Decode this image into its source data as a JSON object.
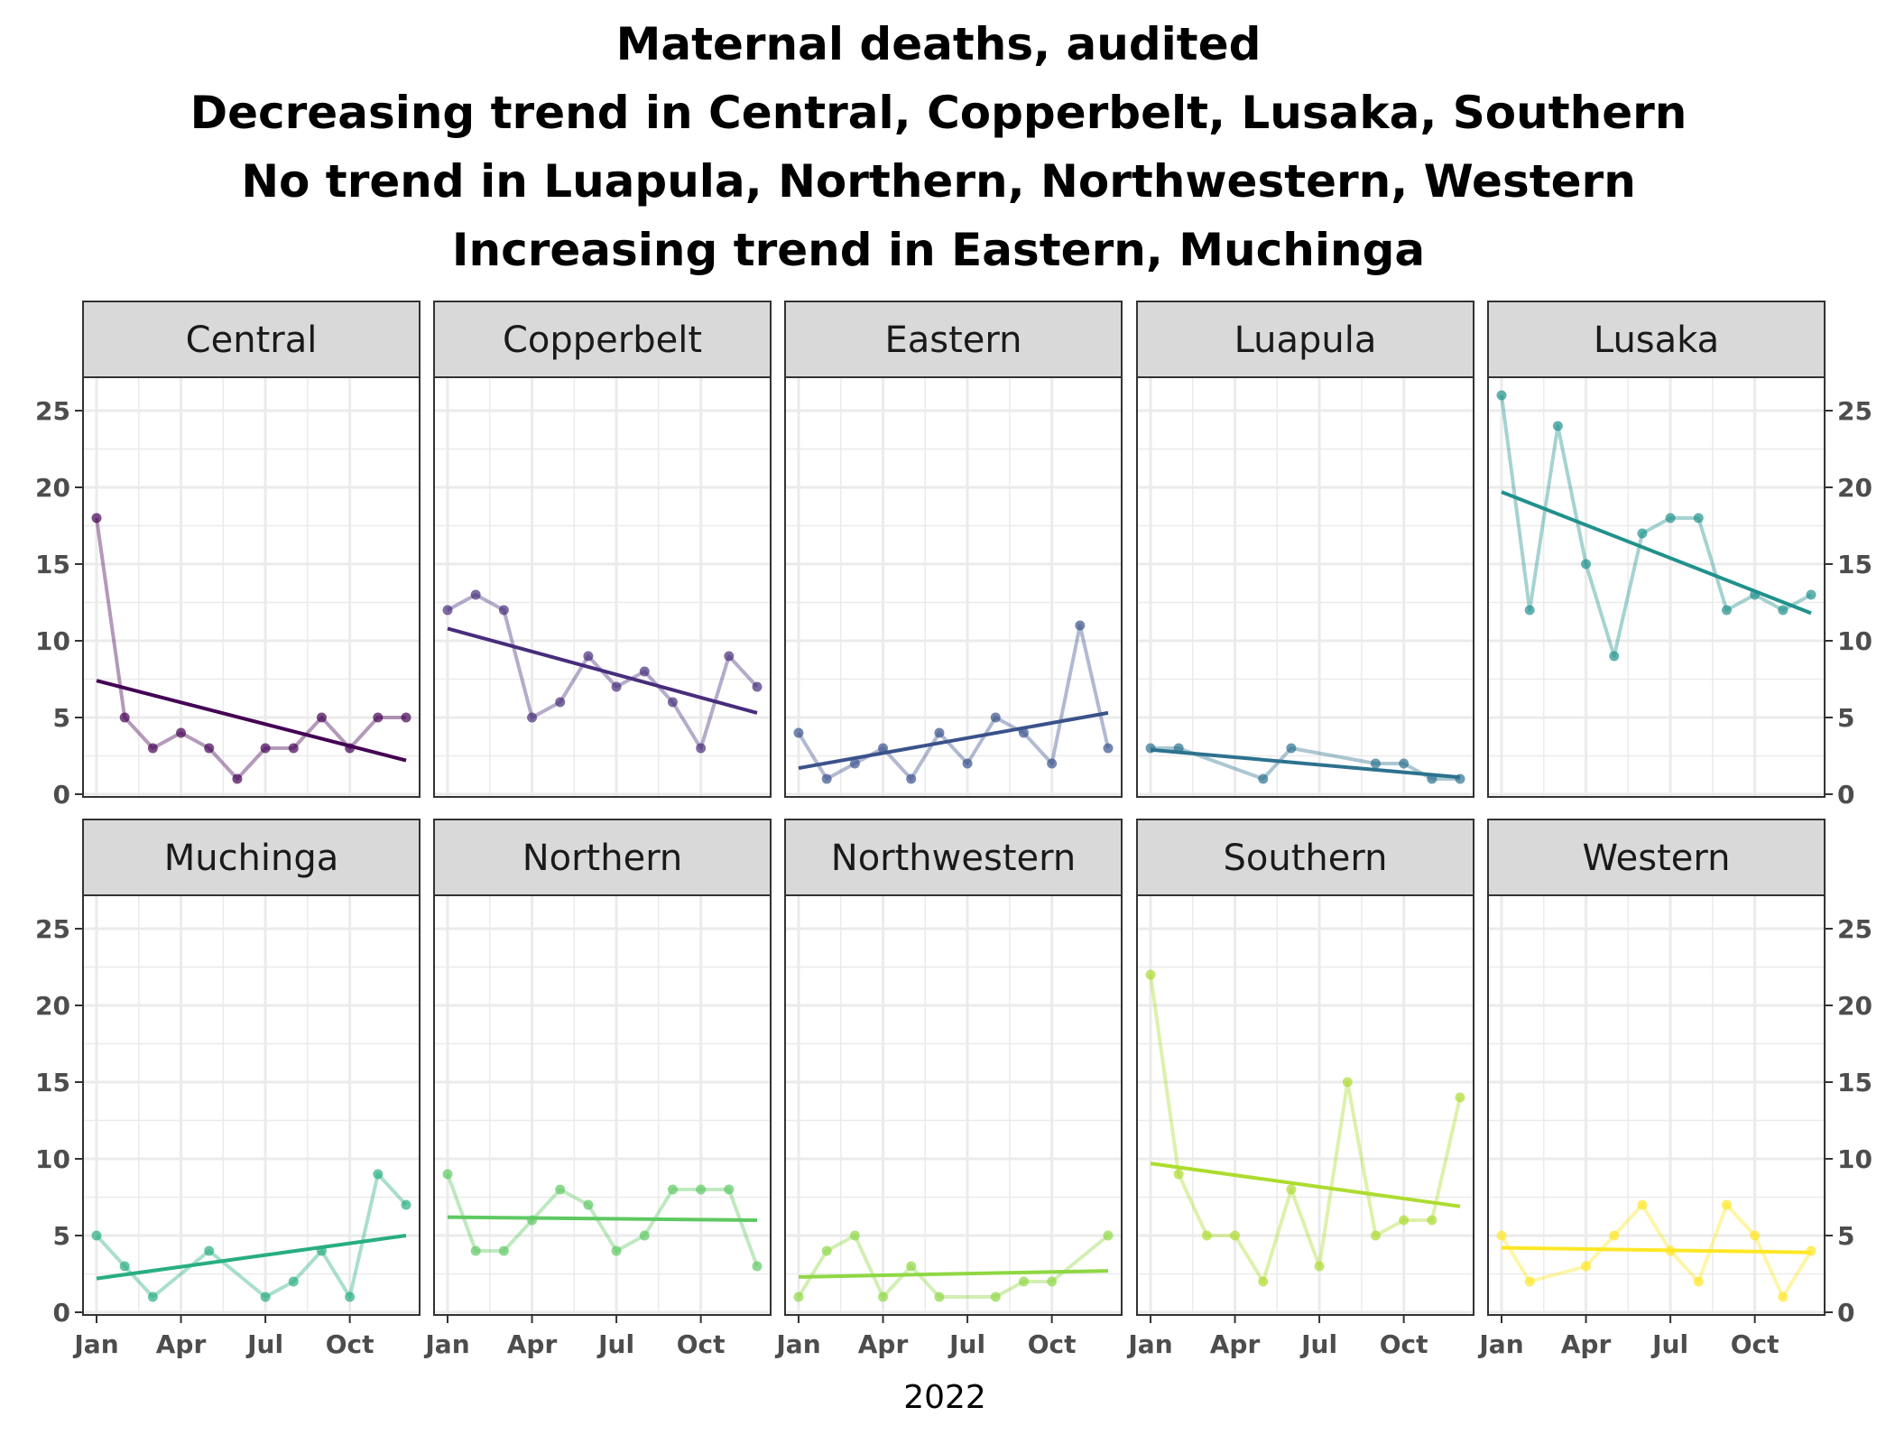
{
  "chart_data": {
    "type": "line",
    "title_lines": [
      "Maternal deaths, audited",
      "Decreasing trend in Central, Copperbelt, Lusaka, Southern",
      "No trend in Luapula, Northern, Northwestern, Western",
      "Increasing trend in Eastern, Muchinga"
    ],
    "xlabel": "2022",
    "ylabel": "",
    "x_tick_labels": [
      "Jan",
      "Apr",
      "Jul",
      "Oct"
    ],
    "x_tick_months": [
      1,
      4,
      7,
      10
    ],
    "y_ticks": [
      0,
      5,
      10,
      15,
      20,
      25
    ],
    "ylim": [
      0,
      26
    ],
    "xlim_months": [
      1,
      12
    ],
    "grid": true,
    "layout": "facet_wrap 2 rows x 5 columns",
    "series": [
      {
        "name": "Central",
        "color": "#440154",
        "months": [
          1,
          2,
          3,
          4,
          5,
          6,
          7,
          8,
          9,
          10,
          11,
          12
        ],
        "values": [
          18,
          5,
          3,
          4,
          3,
          1,
          3,
          3,
          5,
          3,
          5,
          5
        ],
        "trend": [
          7.4,
          2.2
        ]
      },
      {
        "name": "Copperbelt",
        "color": "#472d7b",
        "months": [
          1,
          2,
          3,
          4,
          5,
          6,
          7,
          8,
          9,
          10,
          11,
          12
        ],
        "values": [
          12,
          13,
          12,
          5,
          6,
          9,
          7,
          8,
          6,
          3,
          9,
          7
        ],
        "trend": [
          10.8,
          5.3
        ]
      },
      {
        "name": "Eastern",
        "color": "#3b528b",
        "months": [
          1,
          2,
          3,
          4,
          5,
          6,
          7,
          8,
          9,
          10,
          11,
          12
        ],
        "values": [
          4,
          1,
          2,
          3,
          1,
          4,
          2,
          5,
          4,
          2,
          11,
          3
        ],
        "trend": [
          1.7,
          5.3
        ]
      },
      {
        "name": "Luapula",
        "color": "#2c728e",
        "months": [
          1,
          2,
          5,
          6,
          9,
          10,
          11,
          12
        ],
        "values": [
          3,
          3,
          1,
          3,
          2,
          2,
          1,
          1
        ],
        "trend": [
          2.9,
          1.1
        ]
      },
      {
        "name": "Lusaka",
        "color": "#21918c",
        "months": [
          1,
          2,
          3,
          4,
          5,
          6,
          7,
          8,
          9,
          10,
          11,
          12
        ],
        "values": [
          26,
          12,
          24,
          15,
          9,
          17,
          18,
          18,
          12,
          13,
          12,
          13
        ],
        "trend": [
          19.7,
          11.8
        ]
      },
      {
        "name": "Muchinga",
        "color": "#28ae80",
        "months": [
          1,
          2,
          3,
          5,
          7,
          8,
          9,
          10,
          11,
          12
        ],
        "values": [
          5,
          3,
          1,
          4,
          1,
          2,
          4,
          1,
          9,
          7
        ],
        "trend": [
          2.2,
          5.0
        ]
      },
      {
        "name": "Northern",
        "color": "#5ec962",
        "months": [
          1,
          2,
          3,
          4,
          5,
          6,
          7,
          8,
          9,
          10,
          11,
          12
        ],
        "values": [
          9,
          4,
          4,
          6,
          8,
          7,
          4,
          5,
          8,
          8,
          8,
          3
        ],
        "trend": [
          6.2,
          6.0
        ]
      },
      {
        "name": "Northwestern",
        "color": "#8fd744",
        "months": [
          1,
          2,
          3,
          4,
          5,
          6,
          8,
          9,
          10,
          12
        ],
        "values": [
          1,
          4,
          5,
          1,
          3,
          1,
          1,
          2,
          2,
          5
        ],
        "trend": [
          2.3,
          2.7
        ]
      },
      {
        "name": "Southern",
        "color": "#addc30",
        "months": [
          1,
          2,
          3,
          4,
          5,
          6,
          7,
          8,
          9,
          10,
          11,
          12
        ],
        "values": [
          22,
          9,
          5,
          5,
          2,
          8,
          3,
          15,
          5,
          6,
          6,
          14
        ],
        "trend": [
          9.7,
          6.9
        ]
      },
      {
        "name": "Western",
        "color": "#fde725",
        "months": [
          1,
          2,
          4,
          5,
          6,
          7,
          8,
          9,
          10,
          11,
          12
        ],
        "values": [
          5,
          2,
          3,
          5,
          7,
          4,
          2,
          7,
          5,
          1,
          4
        ],
        "trend": [
          4.2,
          3.9
        ]
      }
    ]
  }
}
